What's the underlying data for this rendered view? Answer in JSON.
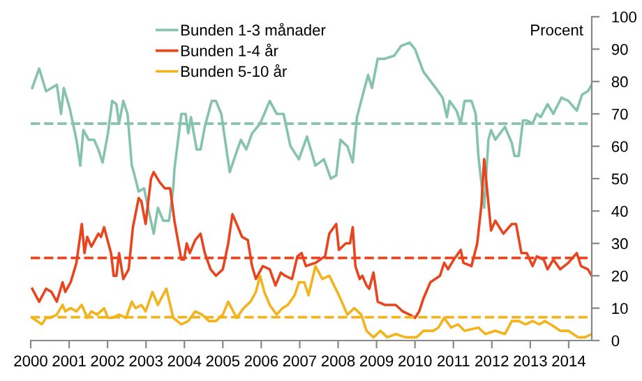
{
  "chart_data": {
    "type": "line",
    "ylabel": "Procent",
    "xlim": [
      2000,
      2014.6
    ],
    "xticks": [
      2000,
      2001,
      2002,
      2003,
      2004,
      2005,
      2006,
      2007,
      2008,
      2009,
      2010,
      2011,
      2012,
      2013,
      2014
    ],
    "ylim": [
      0,
      100
    ],
    "yticks": [
      0,
      10,
      20,
      30,
      40,
      50,
      60,
      70,
      80,
      90,
      100
    ],
    "grid": false,
    "legend": "top left",
    "marker": "none",
    "line_style": "solid",
    "series": [
      {
        "name": "Bunden 1-3 månader",
        "color": "#86c3ad",
        "x": [
          2000.04,
          2000.22,
          2000.4,
          2000.68,
          2000.79,
          2000.86,
          2001.01,
          2001.19,
          2001.29,
          2001.37,
          2001.51,
          2001.65,
          2001.76,
          2001.87,
          2002.01,
          2002.12,
          2002.23,
          2002.3,
          2002.41,
          2002.52,
          2002.63,
          2002.66,
          2002.81,
          2002.95,
          2003.09,
          2003.2,
          2003.31,
          2003.45,
          2003.6,
          2003.71,
          2003.74,
          2003.92,
          2004.03,
          2004.1,
          2004.17,
          2004.32,
          2004.42,
          2004.53,
          2004.71,
          2004.82,
          2004.96,
          2005.18,
          2005.32,
          2005.47,
          2005.61,
          2005.76,
          2005.97,
          2006.22,
          2006.4,
          2006.58,
          2006.76,
          2006.98,
          2007.19,
          2007.41,
          2007.63,
          2007.81,
          2007.95,
          2008.06,
          2008.24,
          2008.38,
          2008.49,
          2008.6,
          2008.78,
          2008.88,
          2009.03,
          2009.21,
          2009.46,
          2009.64,
          2009.86,
          2010.0,
          2010.22,
          2010.54,
          2010.72,
          2010.83,
          2010.9,
          2011.08,
          2011.19,
          2011.29,
          2011.47,
          2011.58,
          2011.65,
          2011.8,
          2011.91,
          2011.98,
          2012.09,
          2012.34,
          2012.52,
          2012.59,
          2012.7,
          2012.81,
          2012.91,
          2013.06,
          2013.17,
          2013.27,
          2013.45,
          2013.6,
          2013.81,
          2013.99,
          2014.21,
          2014.35,
          2014.5,
          2014.6
        ],
        "values": [
          78,
          84,
          77,
          79,
          70,
          78,
          72,
          62,
          54,
          65,
          62,
          62,
          59,
          55,
          64,
          74,
          73,
          67,
          74,
          70,
          54,
          53,
          46,
          47,
          39,
          33,
          41,
          37,
          37,
          47,
          53,
          70,
          70,
          64,
          69,
          59,
          59,
          66,
          74,
          74,
          70,
          52,
          57,
          62,
          59,
          64,
          67,
          74,
          70,
          70,
          60,
          56,
          63,
          54,
          56,
          50,
          51,
          62,
          60,
          55,
          69,
          74,
          82,
          78,
          87,
          87,
          88,
          91,
          92,
          90,
          83,
          78,
          75,
          69,
          74,
          71,
          67,
          74,
          74,
          70,
          57,
          41,
          62,
          65,
          62,
          66,
          61,
          57,
          57,
          68,
          68,
          67,
          70,
          69,
          73,
          70,
          75,
          74,
          71,
          76,
          77,
          79
        ]
      },
      {
        "name": "Bunden 1-4 år",
        "color": "#e8451e",
        "x": [
          2000.04,
          2000.22,
          2000.4,
          2000.54,
          2000.68,
          2000.83,
          2000.9,
          2001.04,
          2001.19,
          2001.33,
          2001.4,
          2001.47,
          2001.58,
          2001.76,
          2001.83,
          2001.91,
          2002.09,
          2002.16,
          2002.23,
          2002.3,
          2002.41,
          2002.55,
          2002.66,
          2002.81,
          2002.88,
          2002.99,
          2003.13,
          2003.2,
          2003.35,
          2003.49,
          2003.63,
          2003.74,
          2003.92,
          2003.99,
          2004.06,
          2004.14,
          2004.28,
          2004.42,
          2004.53,
          2004.68,
          2004.82,
          2005.0,
          2005.14,
          2005.25,
          2005.36,
          2005.5,
          2005.65,
          2005.76,
          2005.86,
          2006.04,
          2006.22,
          2006.37,
          2006.51,
          2006.62,
          2006.8,
          2006.94,
          2007.05,
          2007.16,
          2007.41,
          2007.66,
          2007.77,
          2007.95,
          2008.02,
          2008.2,
          2008.31,
          2008.38,
          2008.45,
          2008.56,
          2008.63,
          2008.74,
          2008.81,
          2008.92,
          2009.03,
          2009.21,
          2009.39,
          2009.5,
          2009.68,
          2009.86,
          2010.0,
          2010.11,
          2010.22,
          2010.4,
          2010.65,
          2010.76,
          2010.86,
          2011.01,
          2011.19,
          2011.26,
          2011.47,
          2011.62,
          2011.73,
          2011.8,
          2011.98,
          2012.09,
          2012.3,
          2012.52,
          2012.63,
          2012.77,
          2012.91,
          2013.06,
          2013.17,
          2013.35,
          2013.45,
          2013.6,
          2013.78,
          2013.99,
          2014.21,
          2014.32,
          2014.5,
          2014.6
        ],
        "values": [
          16,
          12,
          16,
          15,
          12,
          18,
          15,
          18,
          24,
          36,
          27,
          32,
          29,
          33,
          32,
          35,
          27,
          20,
          20,
          27,
          19,
          22,
          35,
          44,
          43,
          36,
          50,
          52,
          49,
          47,
          47,
          37,
          25,
          25,
          30,
          27,
          31,
          33,
          27,
          22,
          20,
          22,
          30,
          39,
          36,
          32,
          31,
          23,
          19,
          23,
          22,
          17,
          21,
          20,
          19,
          26,
          27,
          23,
          24,
          26,
          33,
          36,
          28,
          30,
          30,
          35,
          23,
          19,
          20,
          17,
          16,
          21,
          12,
          11,
          11,
          11,
          9,
          8,
          7,
          9,
          13,
          18,
          20,
          24,
          22,
          25,
          28,
          24,
          23,
          30,
          42,
          56,
          34,
          37,
          33,
          36,
          36,
          27,
          27,
          23,
          26,
          25,
          22,
          25,
          22,
          24,
          27,
          23,
          22,
          20
        ]
      },
      {
        "name": "Bunden 5-10 år",
        "color": "#f2b31c",
        "x": [
          2000.04,
          2000.29,
          2000.4,
          2000.5,
          2000.68,
          2000.83,
          2000.9,
          2001.04,
          2001.19,
          2001.33,
          2001.47,
          2001.58,
          2001.73,
          2001.91,
          2002.01,
          2002.12,
          2002.3,
          2002.48,
          2002.63,
          2002.73,
          2002.88,
          2002.99,
          2003.17,
          2003.31,
          2003.53,
          2003.71,
          2003.92,
          2004.1,
          2004.28,
          2004.46,
          2004.64,
          2004.82,
          2005.0,
          2005.14,
          2005.36,
          2005.54,
          2005.72,
          2005.86,
          2005.97,
          2006.08,
          2006.22,
          2006.4,
          2006.55,
          2006.69,
          2006.87,
          2006.98,
          2007.12,
          2007.23,
          2007.41,
          2007.59,
          2007.77,
          2008.02,
          2008.24,
          2008.42,
          2008.6,
          2008.74,
          2008.92,
          2009.1,
          2009.28,
          2009.5,
          2009.75,
          2010.04,
          2010.22,
          2010.47,
          2010.61,
          2010.76,
          2010.94,
          2011.12,
          2011.29,
          2011.65,
          2011.83,
          2012.09,
          2012.34,
          2012.52,
          2012.7,
          2012.88,
          2013.06,
          2013.24,
          2013.38,
          2013.53,
          2013.78,
          2013.99,
          2014.24,
          2014.42,
          2014.6
        ],
        "values": [
          7,
          5,
          7,
          7,
          8,
          11,
          9,
          10,
          9,
          11,
          7,
          9,
          8,
          10,
          7,
          7,
          8,
          7,
          12,
          10,
          11,
          9,
          15,
          11,
          16,
          7,
          5,
          6,
          9,
          8,
          6,
          6,
          8,
          12,
          7,
          10,
          12,
          15,
          20,
          15,
          11,
          8,
          10,
          11,
          14,
          18,
          18,
          14,
          23,
          19,
          20,
          14,
          8,
          10,
          8,
          3,
          1,
          3,
          1,
          2,
          1,
          1,
          3,
          3,
          4,
          7,
          4,
          5,
          3,
          4,
          2,
          3,
          2,
          6,
          6,
          5,
          6,
          5,
          6,
          5,
          3,
          3,
          1,
          1,
          2
        ]
      }
    ],
    "ref_lines": [
      {
        "axis": "y",
        "value": 67,
        "color": "#86c3ad",
        "line_style": "dashed"
      },
      {
        "axis": "y",
        "value": 25.5,
        "color": "#e8451e",
        "line_style": "dashed"
      },
      {
        "axis": "y",
        "value": 7.2,
        "color": "#f2b31c",
        "line_style": "dashed"
      }
    ]
  }
}
